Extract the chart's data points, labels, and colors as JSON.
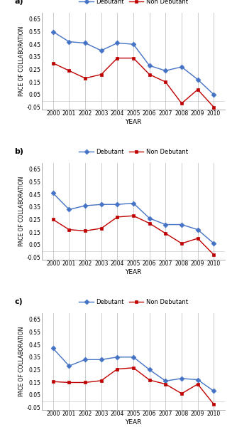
{
  "years": [
    2000,
    2001,
    2002,
    2003,
    2004,
    2005,
    2006,
    2007,
    2008,
    2009,
    2010
  ],
  "panels": [
    {
      "label": "a)",
      "debutant": [
        0.55,
        0.47,
        0.46,
        0.4,
        0.46,
        0.45,
        0.28,
        0.24,
        0.27,
        0.17,
        0.05
      ],
      "non_debutant": [
        0.3,
        0.24,
        0.18,
        0.21,
        0.34,
        0.34,
        0.21,
        0.15,
        -0.02,
        0.09,
        -0.05
      ]
    },
    {
      "label": "b)",
      "debutant": [
        0.46,
        0.33,
        0.36,
        0.37,
        0.37,
        0.38,
        0.26,
        0.21,
        0.21,
        0.17,
        0.06
      ],
      "non_debutant": [
        0.25,
        0.17,
        0.16,
        0.18,
        0.27,
        0.28,
        0.22,
        0.14,
        0.06,
        0.1,
        -0.03
      ]
    },
    {
      "label": "c)",
      "debutant": [
        0.42,
        0.28,
        0.33,
        0.33,
        0.35,
        0.35,
        0.25,
        0.16,
        0.18,
        0.17,
        0.08
      ],
      "non_debutant": [
        0.155,
        0.148,
        0.148,
        0.163,
        0.255,
        0.265,
        0.168,
        0.135,
        0.06,
        0.135,
        -0.025
      ]
    }
  ],
  "debutant_color": "#4472C4",
  "non_debutant_color": "#C00000",
  "ylabel": "PACE OF COLLABORATION",
  "xlabel": "YEAR",
  "ylim": [
    -0.07,
    0.7
  ],
  "yticks": [
    -0.05,
    0.05,
    0.15,
    0.25,
    0.35,
    0.45,
    0.55,
    0.65
  ],
  "ytick_labels": [
    "-0.05",
    "0.05",
    "0.15",
    "0.25",
    "0.35",
    "0.45",
    "0.55",
    "0.65"
  ],
  "background_color": "#ffffff",
  "grid_color": "#cccccc"
}
